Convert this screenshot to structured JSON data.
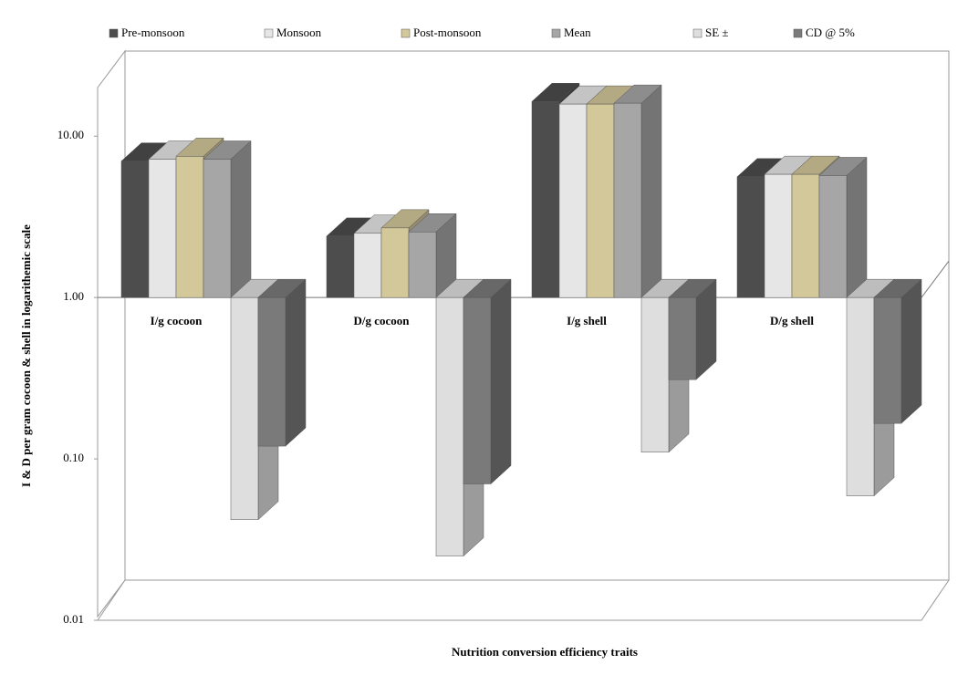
{
  "chart_data": {
    "type": "bar3d",
    "xlabel": "Nutrition conversion efficiency traits",
    "ylabel": "I & D per gram  cocoon & shell in logarithemic scale",
    "categories": [
      "I/g cocoon",
      "D/g cocoon",
      "I/g shell",
      "D/g shell"
    ],
    "series": [
      {
        "name": "Pre-monsoon",
        "color": "#4d4d4d",
        "values": [
          7.0,
          2.4,
          16.4,
          5.6
        ]
      },
      {
        "name": "Monsoon",
        "color": "#e6e6e6",
        "values": [
          7.2,
          2.5,
          15.8,
          5.8
        ]
      },
      {
        "name": "Post-monsoon",
        "color": "#d3c89a",
        "values": [
          7.5,
          2.7,
          15.8,
          5.8
        ]
      },
      {
        "name": "Mean",
        "color": "#a6a6a6",
        "values": [
          7.2,
          2.55,
          16.0,
          5.7
        ]
      },
      {
        "name": "SE ±",
        "color": "#dedede",
        "values": [
          0.042,
          0.025,
          0.11,
          0.059
        ]
      },
      {
        "name": "CD @ 5%",
        "color": "#7a7a7a",
        "values": [
          0.12,
          0.07,
          0.31,
          0.166
        ]
      }
    ],
    "log_scale": true,
    "ylim": [
      0.01,
      20
    ],
    "yticks": [
      0.01,
      {
        "value": 0.1,
        "label": "0.10"
      },
      {
        "value": 1,
        "label": "1.00"
      },
      {
        "value": 10,
        "label": "10.00"
      }
    ],
    "legend": "top"
  }
}
